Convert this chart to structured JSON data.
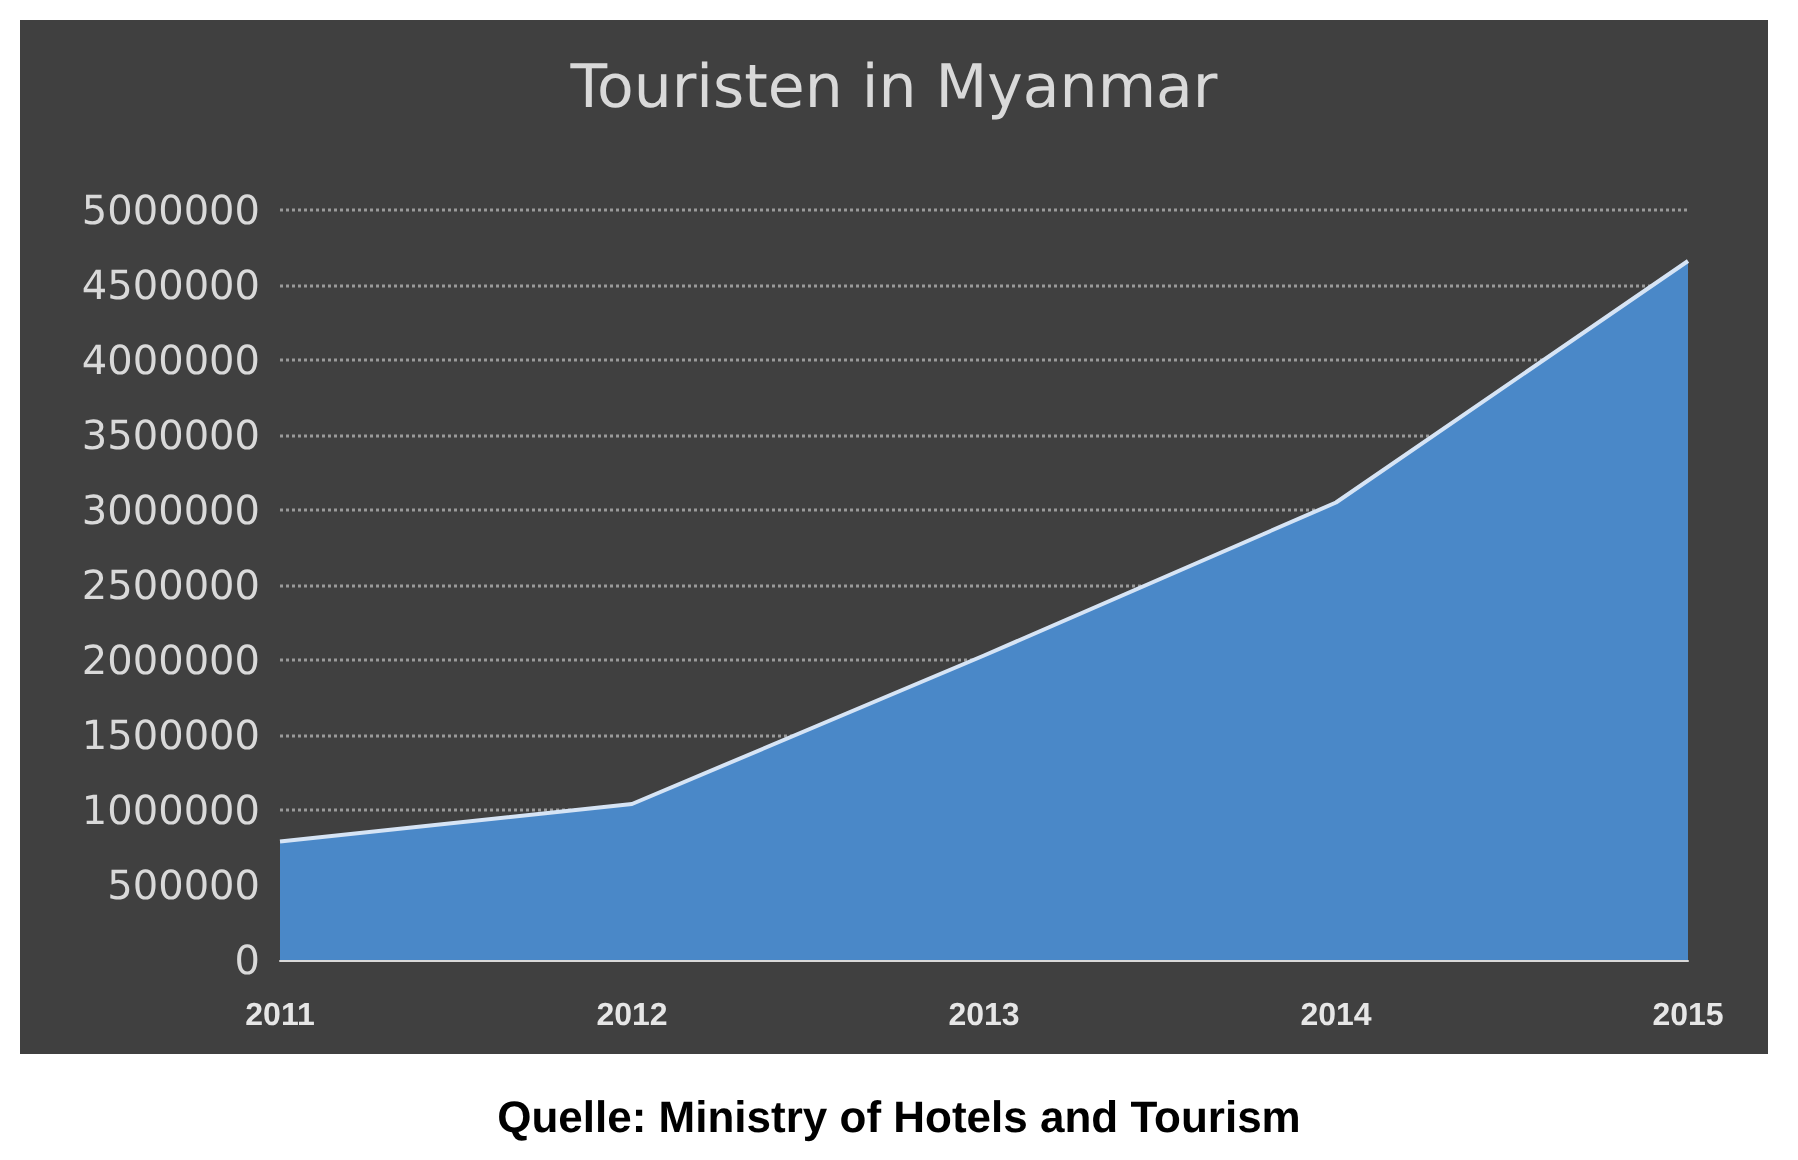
{
  "chart_data": {
    "type": "area",
    "title": "Touristen in Myanmar",
    "categories": [
      "2011",
      "2012",
      "2013",
      "2014",
      "2015"
    ],
    "series": [
      {
        "color": "#4a88c8",
        "values": [
          790000,
          1040000,
          2030000,
          3050000,
          4660000
        ]
      }
    ],
    "ylim": [
      0,
      5000000
    ],
    "yticks": [
      0,
      500000,
      1000000,
      1500000,
      2000000,
      2500000,
      3000000,
      3500000,
      4000000,
      4500000,
      5000000
    ],
    "grid": "y",
    "marker": "none",
    "line_style": "solid",
    "annotations": [
      "Quelle: Ministry of Hotels and Tourism"
    ]
  }
}
